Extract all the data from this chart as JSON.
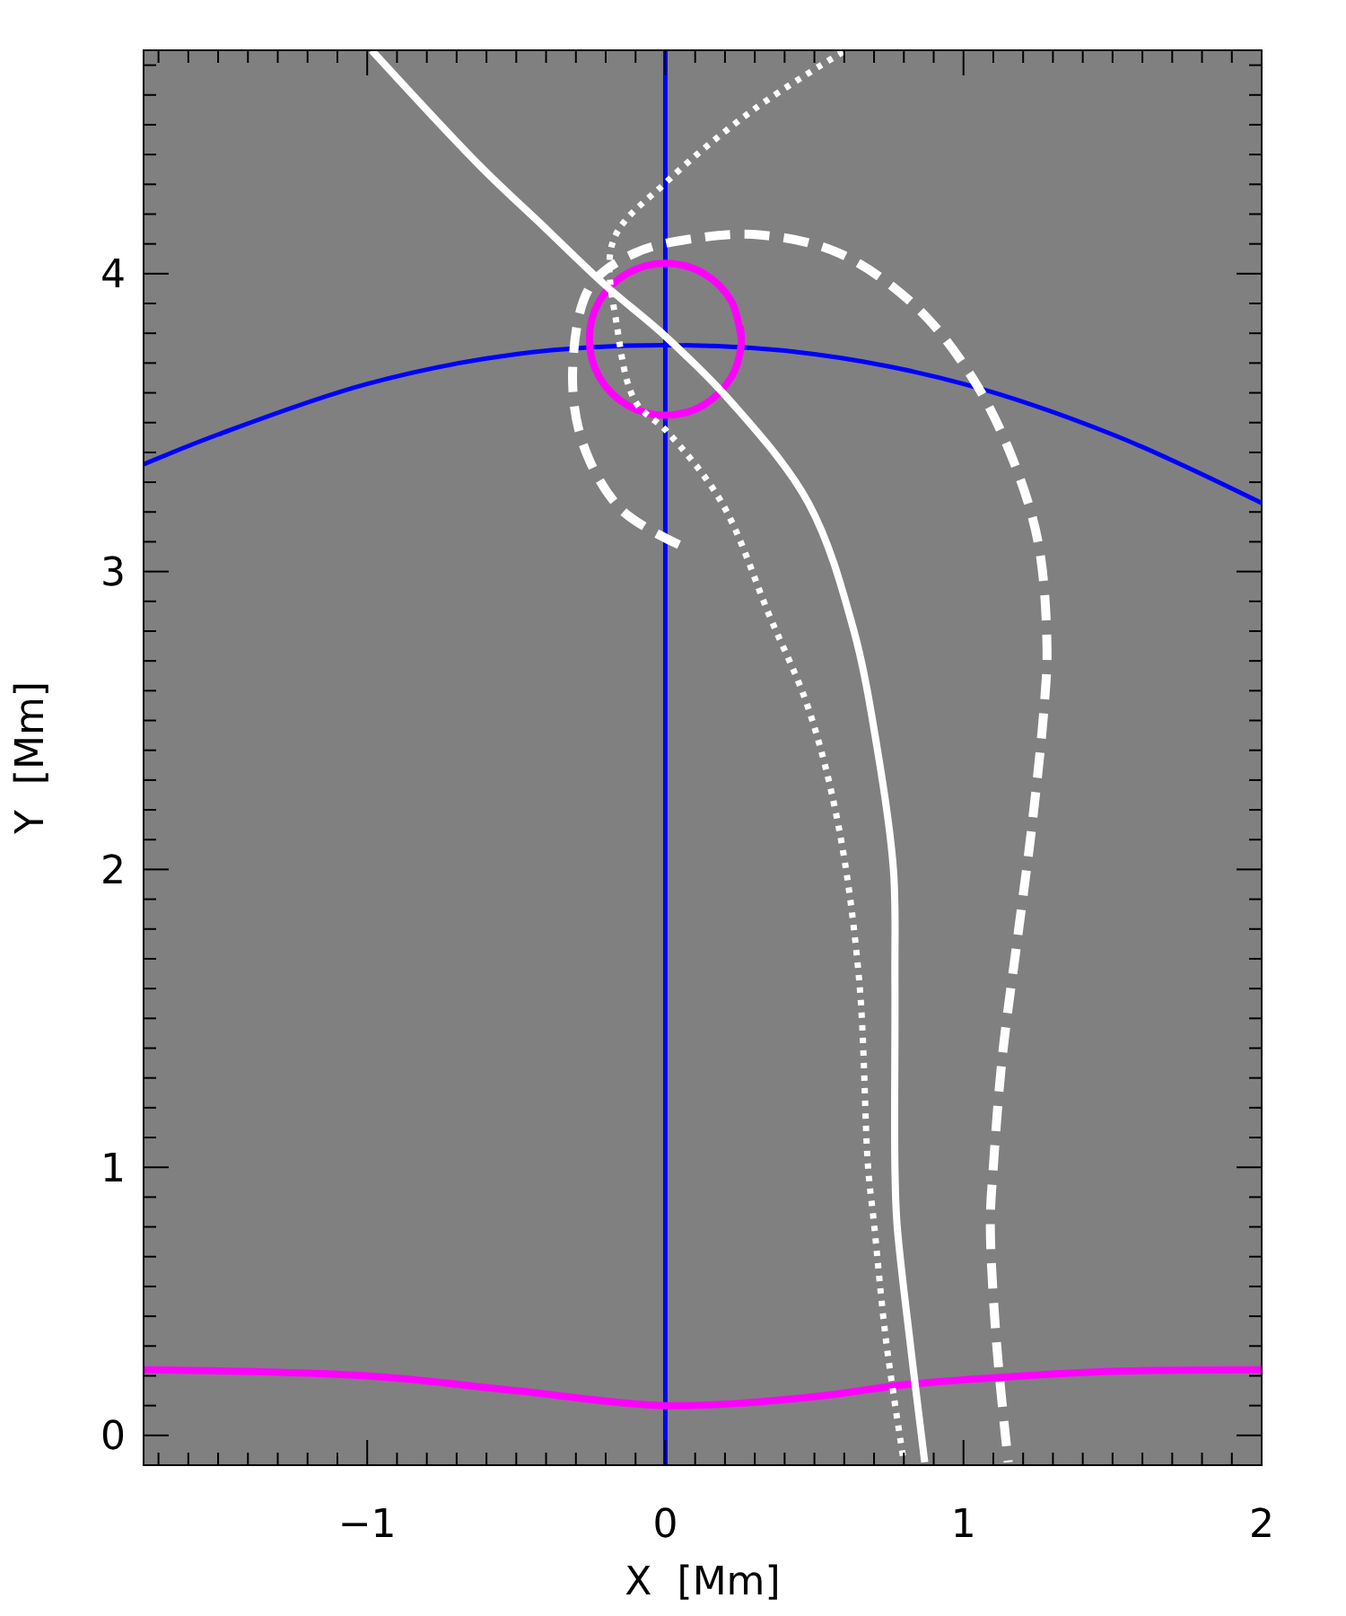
{
  "chart_data": {
    "type": "line",
    "xlabel": "X  [Mm]",
    "ylabel": "Y  [Mm]",
    "xlim": [
      -1.75,
      2
    ],
    "ylim": [
      0,
      4.75
    ],
    "xticks": [
      {
        "value": -1.7,
        "label": null
      },
      {
        "value": -1.6,
        "label": null
      },
      {
        "value": -1.5,
        "label": null
      },
      {
        "value": -1.4,
        "label": null
      },
      {
        "value": -1.3,
        "label": null
      },
      {
        "value": -1.2,
        "label": null
      },
      {
        "value": -1.1,
        "label": null
      },
      {
        "value": -1,
        "label": "−1"
      },
      {
        "value": -0.9,
        "label": null
      },
      {
        "value": -0.8,
        "label": null
      },
      {
        "value": -0.7,
        "label": null
      },
      {
        "value": -0.6,
        "label": null
      },
      {
        "value": -0.5,
        "label": null
      },
      {
        "value": -0.4,
        "label": null
      },
      {
        "value": -0.3,
        "label": null
      },
      {
        "value": -0.2,
        "label": null
      },
      {
        "value": -0.1,
        "label": null
      },
      0,
      {
        "value": 0.1,
        "label": null
      },
      {
        "value": 0.2,
        "label": null
      },
      {
        "value": 0.3,
        "label": null
      },
      {
        "value": 0.4,
        "label": null
      },
      {
        "value": 0.5,
        "label": null
      },
      {
        "value": 0.6,
        "label": null
      },
      {
        "value": 0.7,
        "label": null
      },
      {
        "value": 0.8,
        "label": null
      },
      {
        "value": 0.9,
        "label": null
      },
      1,
      {
        "value": 1.1,
        "label": null
      },
      {
        "value": 1.2,
        "label": null
      },
      {
        "value": 1.3,
        "label": null
      },
      {
        "value": 1.4,
        "label": null
      },
      {
        "value": 1.5,
        "label": null
      },
      {
        "value": 1.6,
        "label": null
      },
      {
        "value": 1.7,
        "label": null
      },
      {
        "value": 1.8,
        "label": null
      },
      {
        "value": 1.9,
        "label": null
      },
      2
    ],
    "yticks": [
      {
        "value": 0.1,
        "label": "0"
      },
      {
        "value": 0.2,
        "label": null
      },
      {
        "value": 0.3,
        "label": null
      },
      {
        "value": 0.4,
        "label": null
      },
      {
        "value": 0.5,
        "label": null
      },
      {
        "value": 0.6,
        "label": null
      },
      {
        "value": 0.7,
        "label": null
      },
      {
        "value": 0.8,
        "label": null
      },
      {
        "value": 0.9,
        "label": null
      },
      1,
      {
        "value": 1.1,
        "label": null
      },
      {
        "value": 1.2,
        "label": null
      },
      {
        "value": 1.3,
        "label": null
      },
      {
        "value": 1.4,
        "label": null
      },
      {
        "value": 1.5,
        "label": null
      },
      {
        "value": 1.6,
        "label": null
      },
      {
        "value": 1.7,
        "label": null
      },
      {
        "value": 1.8,
        "label": null
      },
      {
        "value": 1.9,
        "label": null
      },
      2,
      {
        "value": 2.1,
        "label": null
      },
      {
        "value": 2.2,
        "label": null
      },
      {
        "value": 2.3,
        "label": null
      },
      {
        "value": 2.4,
        "label": null
      },
      {
        "value": 2.5,
        "label": null
      },
      {
        "value": 2.6,
        "label": null
      },
      {
        "value": 2.7,
        "label": null
      },
      {
        "value": 2.8,
        "label": null
      },
      {
        "value": 2.9,
        "label": null
      },
      3,
      {
        "value": 3.1,
        "label": null
      },
      {
        "value": 3.2,
        "label": null
      },
      {
        "value": 3.3,
        "label": null
      },
      {
        "value": 3.4,
        "label": null
      },
      {
        "value": 3.5,
        "label": null
      },
      {
        "value": 3.6,
        "label": null
      },
      {
        "value": 3.7,
        "label": null
      },
      {
        "value": 3.8,
        "label": null
      },
      {
        "value": 3.9,
        "label": null
      },
      4,
      {
        "value": 4.1,
        "label": null
      },
      {
        "value": 4.2,
        "label": null
      },
      {
        "value": 4.3,
        "label": null
      },
      {
        "value": 4.4,
        "label": null
      },
      {
        "value": 4.5,
        "label": null
      },
      {
        "value": 4.6,
        "label": null
      },
      {
        "value": 4.7,
        "label": null
      }
    ],
    "grid": false,
    "marker": "none",
    "series": [
      {
        "color": "#0000ff",
        "line_style": "solid",
        "x": [
          0,
          0
        ],
        "values": [
          0,
          4.75
        ]
      },
      {
        "color": "#0000ff",
        "line_style": "solid",
        "x": [
          -1.75,
          -1.5,
          -1,
          -0.5,
          0,
          0.5,
          1,
          1.5,
          2
        ],
        "values": [
          3.36,
          3.46,
          3.63,
          3.73,
          3.76,
          3.73,
          3.63,
          3.46,
          3.23
        ]
      },
      {
        "color": "#ff00ff",
        "line_style": "solid",
        "x": [
          -1.75,
          -1,
          -0.5,
          0,
          0.5,
          0.8,
          1.2,
          1.5,
          2
        ],
        "values": [
          0.32,
          0.3,
          0.25,
          0.2,
          0.23,
          0.27,
          0.3,
          0.315,
          0.32
        ]
      },
      {
        "color": "#ff00ff",
        "line_style": "solid",
        "x": [
          0.255,
          0.221,
          0.128,
          0,
          -0.128,
          -0.221,
          -0.255,
          -0.221,
          -0.128,
          0,
          0.128,
          0.221,
          0.254,
          0.251
        ],
        "values": [
          3.78,
          3.908,
          4.001,
          4.035,
          4.001,
          3.908,
          3.78,
          3.652,
          3.559,
          3.525,
          3.559,
          3.652,
          3.758,
          3.824
        ]
      },
      {
        "color": "#ffffff",
        "line_style": "solid",
        "x": [
          -0.985,
          -0.62,
          -0.41,
          -0.2,
          0,
          0.22,
          0.48,
          0.63,
          0.71,
          0.765,
          0.77,
          0.77,
          0.777,
          0.82,
          0.87
        ],
        "values": [
          4.75,
          4.36,
          4.16,
          3.96,
          3.79,
          3.57,
          3.23,
          2.81,
          2.41,
          2.0,
          1.63,
          1.0,
          0.81,
          0.42,
          0.01
        ]
      },
      {
        "color": "#ffffff",
        "line_style": "dotted",
        "x": [
          0.596,
          0.295,
          0.006,
          -0.175,
          -0.16,
          -0.1,
          0.006,
          0.19,
          0.35,
          0.48,
          0.58,
          0.65,
          0.68,
          0.7,
          0.74,
          0.8
        ],
        "values": [
          4.745,
          4.55,
          4.31,
          4.11,
          3.81,
          3.57,
          3.47,
          3.23,
          2.85,
          2.54,
          2.15,
          1.63,
          1.0,
          0.81,
          0.42,
          0.01
        ]
      },
      {
        "color": "#ffffff",
        "line_style": "dashed",
        "x": [
          0.046,
          -0.15,
          -0.28,
          -0.31,
          -0.25,
          -0.1,
          0.11,
          0.32,
          0.58,
          0.84,
          1.03,
          1.16,
          1.25,
          1.28,
          1.27,
          1.23,
          1.18,
          1.13,
          1.1,
          1.09,
          1.11,
          1.15
        ],
        "values": [
          3.09,
          3.21,
          3.44,
          3.7,
          3.96,
          4.07,
          4.12,
          4.13,
          4.07,
          3.89,
          3.65,
          3.39,
          3.1,
          2.75,
          2.54,
          2.15,
          1.76,
          1.37,
          1.0,
          0.81,
          0.42,
          0.01
        ]
      }
    ]
  }
}
